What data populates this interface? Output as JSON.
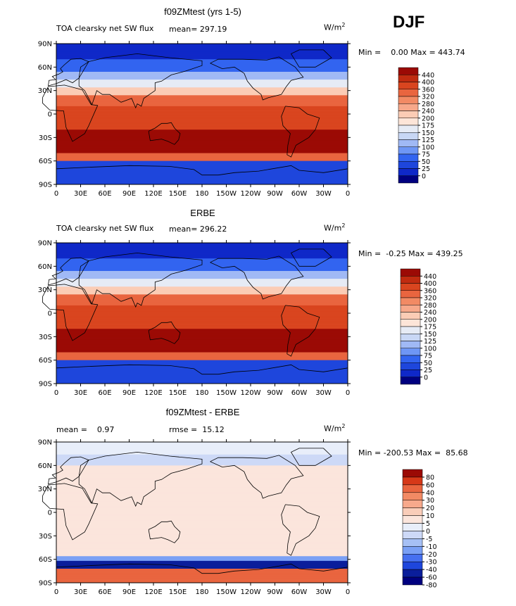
{
  "season": "DJF",
  "units": {
    "base": "W/m",
    "exp": "2"
  },
  "lat_ticks": [
    "90N",
    "60N",
    "30N",
    "0",
    "30S",
    "60S",
    "90S"
  ],
  "lon_ticks": [
    "0",
    "30E",
    "60E",
    "90E",
    "120E",
    "150E",
    "180",
    "150W",
    "120W",
    "90W",
    "60W",
    "30W",
    "0"
  ],
  "colors": {
    "abs": [
      "#00007f",
      "#0f28c8",
      "#1e46dc",
      "#3264f0",
      "#6e96f5",
      "#a0b9f5",
      "#c8d7f5",
      "#e6ebf5",
      "#fde5d8",
      "#fbccb5",
      "#f7a88a",
      "#f28a64",
      "#e9653f",
      "#d9451f",
      "#c02b10",
      "#9b0a05"
    ],
    "diff": [
      "#00007f",
      "#0a1e9b",
      "#1e46dc",
      "#4670f0",
      "#7aa0f5",
      "#a6c0f5",
      "#cdd9f7",
      "#e8eefa",
      "#fbe5dc",
      "#f9cdb9",
      "#f7a98c",
      "#f28a64",
      "#e9653f",
      "#d63818",
      "#9b0a05"
    ]
  },
  "panels": [
    {
      "title": "f09ZMtest (yrs 1-5)",
      "left_label": "TOA clearsky net SW flux",
      "mean_label": "mean= 297.19",
      "minmax": "Min =    0.00 Max = 443.74",
      "colorbar": [
        "440",
        "400",
        "360",
        "320",
        "280",
        "240",
        "200",
        "175",
        "150",
        "125",
        "100",
        "75",
        "50",
        "25",
        "0"
      ]
    },
    {
      "title": "ERBE",
      "left_label": "TOA clearsky net SW flux",
      "mean_label": "mean= 296.22",
      "minmax": "Min =  -0.25 Max = 439.25",
      "colorbar": [
        "440",
        "400",
        "360",
        "320",
        "280",
        "240",
        "200",
        "175",
        "150",
        "125",
        "100",
        "75",
        "50",
        "25",
        "0"
      ]
    },
    {
      "title": "f09ZMtest - ERBE",
      "left_label": "mean =    0.97",
      "mean_label": "rmse =  15.12",
      "minmax": "Min = -200.53 Max =  85.68",
      "colorbar": [
        "80",
        "60",
        "40",
        "30",
        "20",
        "10",
        "5",
        "0",
        "-5",
        "-10",
        "-20",
        "-30",
        "-40",
        "-60",
        "-80"
      ]
    }
  ]
}
